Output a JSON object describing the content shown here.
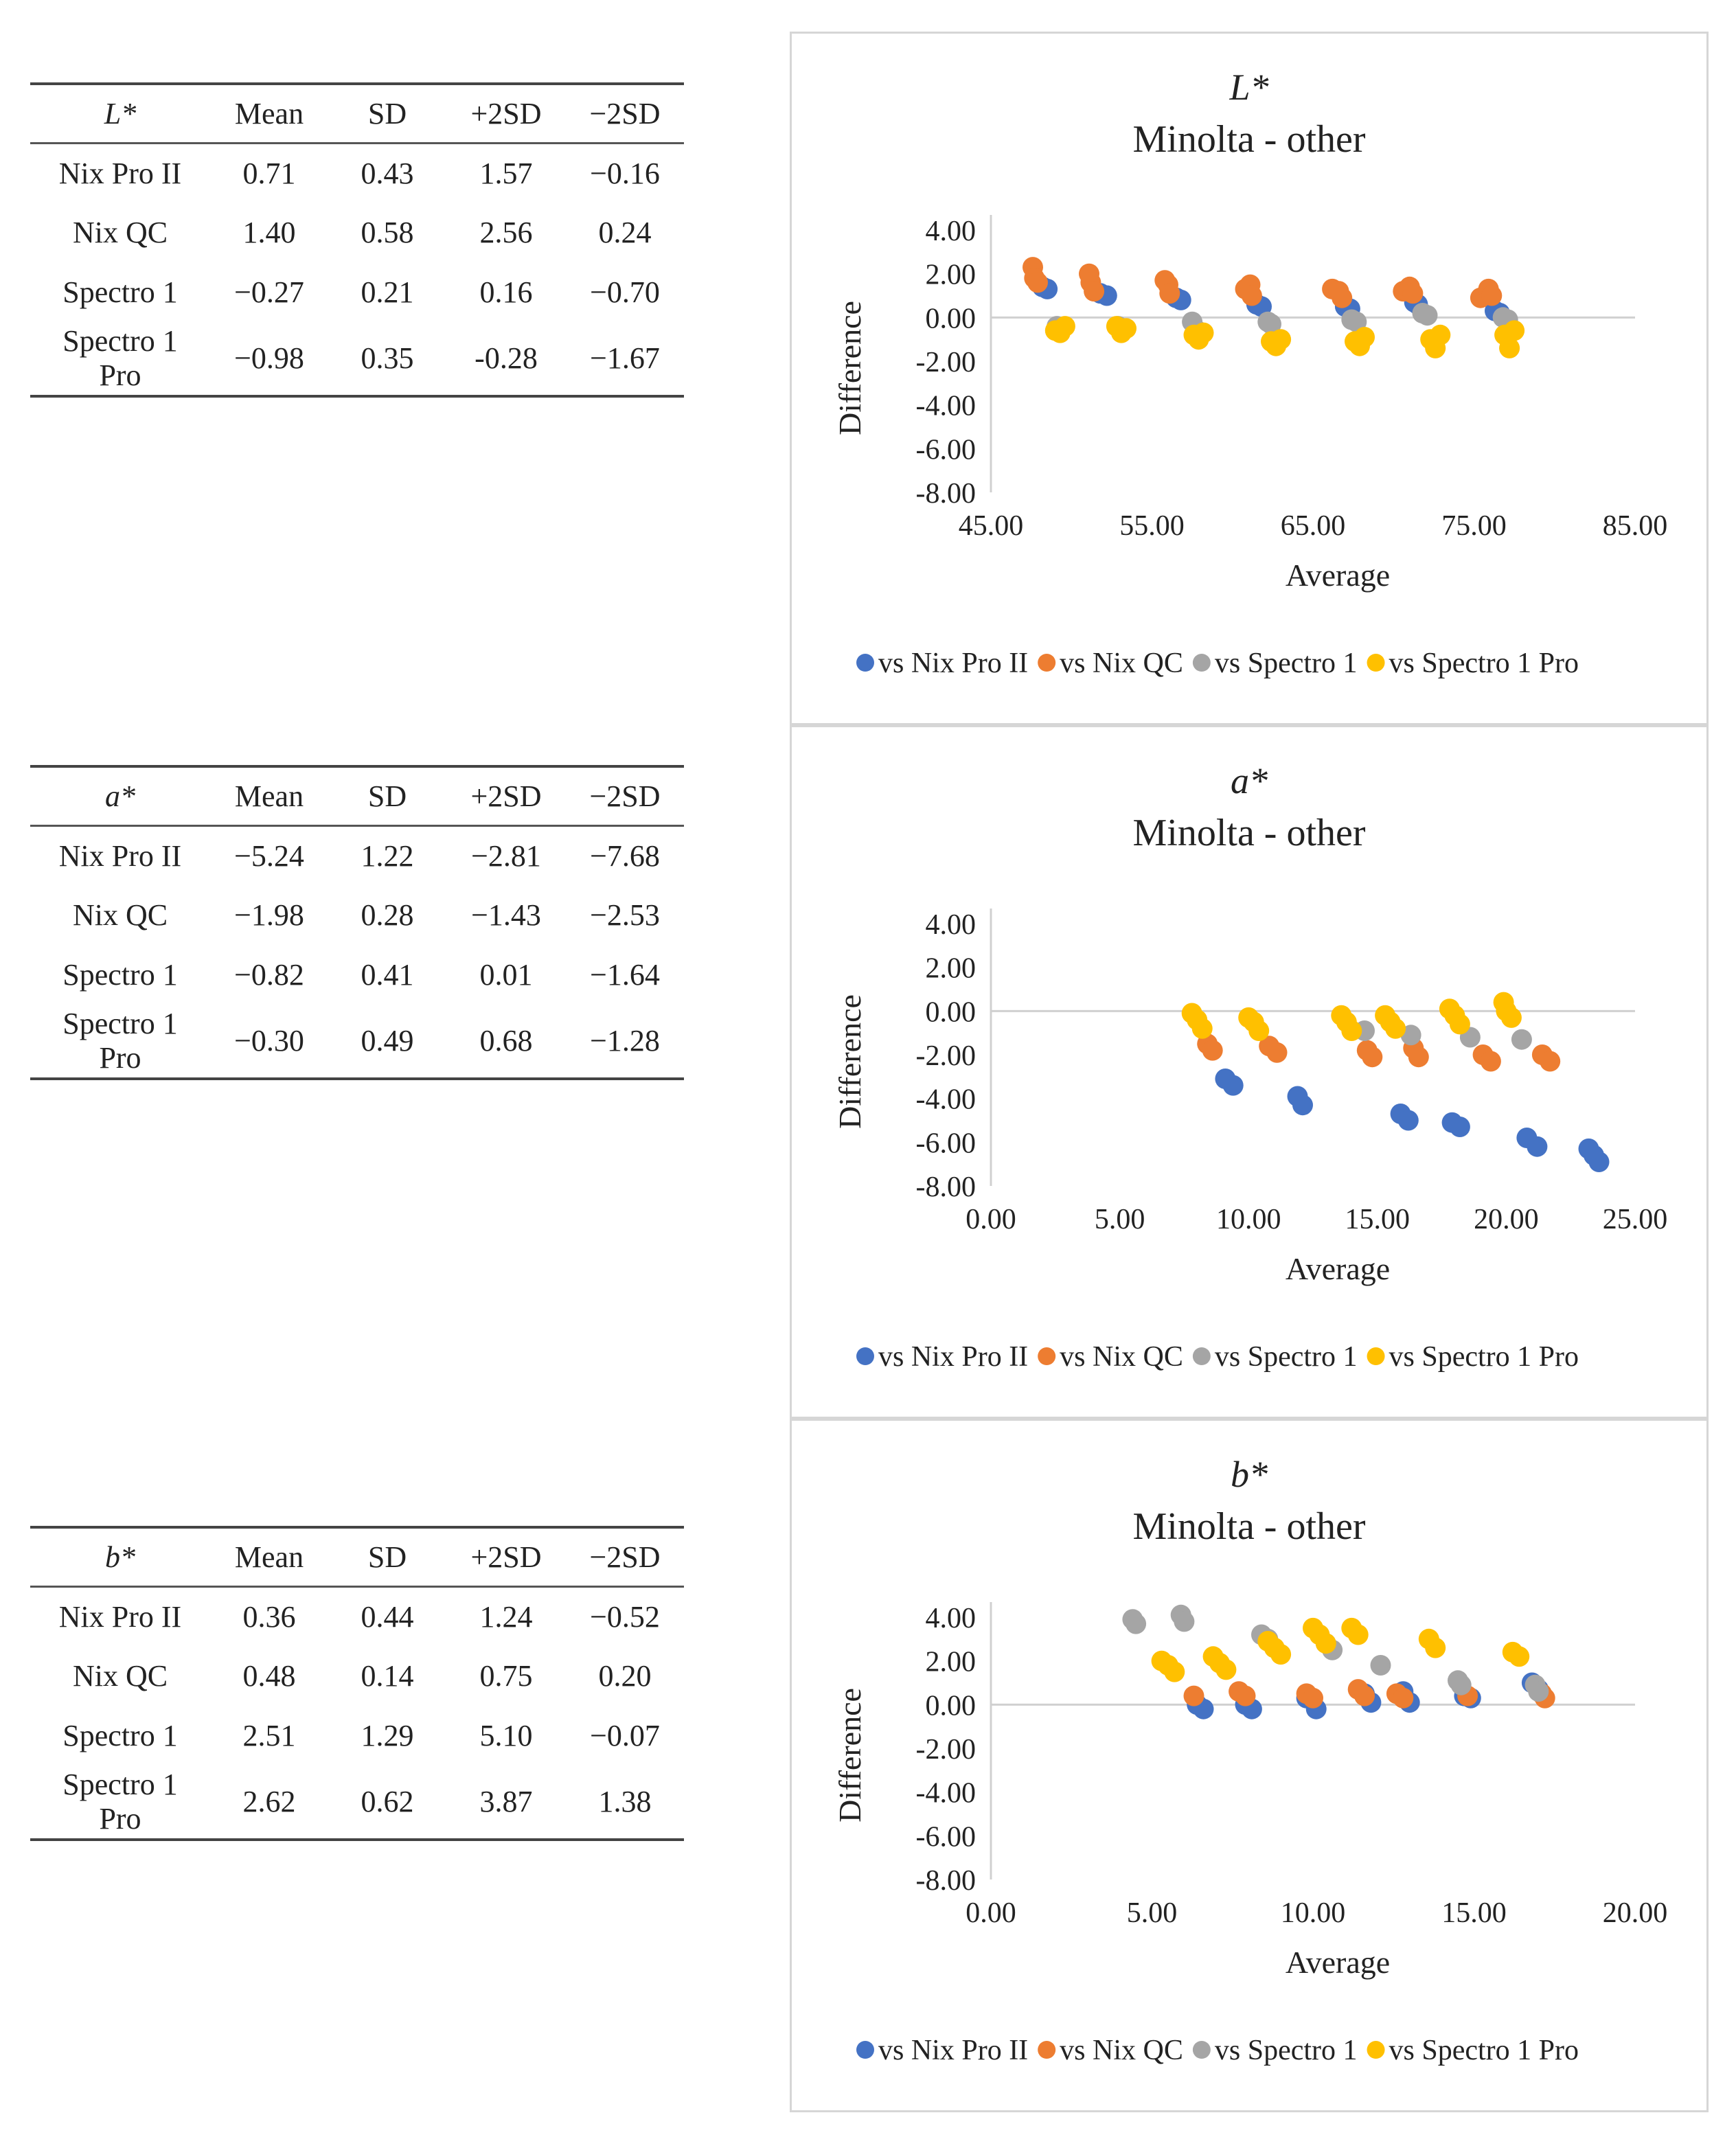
{
  "tables": [
    {
      "variable": "L*",
      "headers": [
        "Mean",
        "SD",
        "+2SD",
        "−2SD"
      ],
      "rows": [
        {
          "label": "Nix Pro II",
          "values": [
            "0.71",
            "0.43",
            "1.57",
            "−0.16"
          ]
        },
        {
          "label": "Nix QC",
          "values": [
            "1.40",
            "0.58",
            "2.56",
            "0.24"
          ]
        },
        {
          "label": "Spectro 1",
          "values": [
            "−0.27",
            "0.21",
            "0.16",
            "−0.70"
          ]
        },
        {
          "label": "Spectro 1 Pro",
          "values": [
            "−0.98",
            "0.35",
            "-0.28",
            "−1.67"
          ]
        }
      ]
    },
    {
      "variable": "a*",
      "headers": [
        "Mean",
        "SD",
        "+2SD",
        "−2SD"
      ],
      "rows": [
        {
          "label": "Nix Pro II",
          "values": [
            "−5.24",
            "1.22",
            "−2.81",
            "−7.68"
          ]
        },
        {
          "label": "Nix QC",
          "values": [
            "−1.98",
            "0.28",
            "−1.43",
            "−2.53"
          ]
        },
        {
          "label": "Spectro 1",
          "values": [
            "−0.82",
            "0.41",
            "0.01",
            "−1.64"
          ]
        },
        {
          "label": "Spectro 1 Pro",
          "values": [
            "−0.30",
            "0.49",
            "0.68",
            "−1.28"
          ]
        }
      ]
    },
    {
      "variable": "b*",
      "headers": [
        "Mean",
        "SD",
        "+2SD",
        "−2SD"
      ],
      "rows": [
        {
          "label": "Nix Pro II",
          "values": [
            "0.36",
            "0.44",
            "1.24",
            "−0.52"
          ]
        },
        {
          "label": "Nix QC",
          "values": [
            "0.48",
            "0.14",
            "0.75",
            "0.20"
          ]
        },
        {
          "label": "Spectro 1",
          "values": [
            "2.51",
            "1.29",
            "5.10",
            "−0.07"
          ]
        },
        {
          "label": "Spectro 1 Pro",
          "values": [
            "2.62",
            "0.62",
            "3.87",
            "1.38"
          ]
        }
      ]
    }
  ],
  "colors": {
    "vs Nix Pro II": "#4472C4",
    "vs Nix QC": "#ED7D31",
    "vs Spectro 1": "#A5A5A5",
    "vs Spectro 1 Pro": "#FFC000",
    "axis": "#d0d0d0",
    "text": "#222222"
  },
  "chart_data": [
    {
      "type": "scatter",
      "title_var": "L*",
      "title": "Minolta - other",
      "xlabel": "Average",
      "ylabel": "Difference",
      "xlim": [
        45,
        85
      ],
      "ylim": [
        -8,
        4
      ],
      "xticks": [
        "45.00",
        "55.00",
        "65.00",
        "75.00",
        "85.00"
      ],
      "yticks": [
        "4.00",
        "2.00",
        "0.00",
        "-2.00",
        "-4.00",
        "-6.00",
        "-8.00"
      ],
      "legend_position": "bottom",
      "series": [
        {
          "name": "vs Nix Pro II",
          "points": [
            [
              48.2,
              1.4
            ],
            [
              48.5,
              1.3
            ],
            [
              51.8,
              1.1
            ],
            [
              52.2,
              1.0
            ],
            [
              56.5,
              0.9
            ],
            [
              56.8,
              0.8
            ],
            [
              61.5,
              0.6
            ],
            [
              61.8,
              0.5
            ],
            [
              67.0,
              0.5
            ],
            [
              67.3,
              0.4
            ],
            [
              71.3,
              0.7
            ],
            [
              71.5,
              0.6
            ],
            [
              76.3,
              0.3
            ],
            [
              76.6,
              0.2
            ]
          ]
        },
        {
          "name": "vs Nix QC",
          "points": [
            [
              47.6,
              2.3
            ],
            [
              47.7,
              1.8
            ],
            [
              47.9,
              1.6
            ],
            [
              51.1,
              2.0
            ],
            [
              51.2,
              1.6
            ],
            [
              51.4,
              1.2
            ],
            [
              55.8,
              1.7
            ],
            [
              56.0,
              1.5
            ],
            [
              56.1,
              1.1
            ],
            [
              60.8,
              1.3
            ],
            [
              61.1,
              1.5
            ],
            [
              61.2,
              1.0
            ],
            [
              66.2,
              1.3
            ],
            [
              66.6,
              1.2
            ],
            [
              66.8,
              0.9
            ],
            [
              70.6,
              1.2
            ],
            [
              71.0,
              1.4
            ],
            [
              71.2,
              1.1
            ],
            [
              75.4,
              0.9
            ],
            [
              75.9,
              1.3
            ],
            [
              76.1,
              1.0
            ]
          ]
        },
        {
          "name": "vs Spectro 1",
          "points": [
            [
              49.1,
              -0.4
            ],
            [
              49.4,
              -0.5
            ],
            [
              52.9,
              -0.4
            ],
            [
              57.5,
              -0.2
            ],
            [
              57.8,
              -0.6
            ],
            [
              62.2,
              -0.2
            ],
            [
              62.4,
              -0.3
            ],
            [
              67.4,
              -0.1
            ],
            [
              67.7,
              -0.2
            ],
            [
              71.8,
              0.2
            ],
            [
              72.1,
              0.1
            ],
            [
              76.8,
              0.0
            ],
            [
              77.1,
              -0.1
            ]
          ]
        },
        {
          "name": "vs Spectro 1 Pro",
          "points": [
            [
              49.0,
              -0.6
            ],
            [
              49.3,
              -0.7
            ],
            [
              49.6,
              -0.4
            ],
            [
              52.8,
              -0.4
            ],
            [
              53.1,
              -0.7
            ],
            [
              53.4,
              -0.5
            ],
            [
              57.6,
              -0.8
            ],
            [
              57.9,
              -1.0
            ],
            [
              58.2,
              -0.7
            ],
            [
              62.4,
              -1.1
            ],
            [
              62.7,
              -1.3
            ],
            [
              63.0,
              -1.0
            ],
            [
              67.6,
              -1.1
            ],
            [
              67.9,
              -1.3
            ],
            [
              68.2,
              -0.9
            ],
            [
              72.3,
              -1.0
            ],
            [
              72.6,
              -1.4
            ],
            [
              72.9,
              -0.8
            ],
            [
              76.9,
              -0.8
            ],
            [
              77.2,
              -1.4
            ],
            [
              77.5,
              -0.6
            ]
          ]
        }
      ]
    },
    {
      "type": "scatter",
      "title_var": "a*",
      "title": "Minolta - other",
      "xlabel": "Average",
      "ylabel": "Difference",
      "xlim": [
        0,
        25
      ],
      "ylim": [
        -8,
        4
      ],
      "xticks": [
        "0.00",
        "5.00",
        "10.00",
        "15.00",
        "20.00",
        "25.00"
      ],
      "yticks": [
        "4.00",
        "2.00",
        "0.00",
        "-2.00",
        "-4.00",
        "-6.00",
        "-8.00"
      ],
      "legend_position": "bottom",
      "series": [
        {
          "name": "vs Nix Pro II",
          "points": [
            [
              9.1,
              -3.1
            ],
            [
              9.4,
              -3.4
            ],
            [
              11.9,
              -3.9
            ],
            [
              12.1,
              -4.3
            ],
            [
              15.9,
              -4.7
            ],
            [
              16.2,
              -5.0
            ],
            [
              17.9,
              -5.1
            ],
            [
              18.2,
              -5.3
            ],
            [
              20.8,
              -5.8
            ],
            [
              21.2,
              -6.2
            ],
            [
              23.2,
              -6.3
            ],
            [
              23.4,
              -6.6
            ],
            [
              23.6,
              -6.9
            ]
          ]
        },
        {
          "name": "vs Nix QC",
          "points": [
            [
              8.4,
              -1.5
            ],
            [
              8.6,
              -1.8
            ],
            [
              10.8,
              -1.6
            ],
            [
              11.1,
              -1.9
            ],
            [
              14.6,
              -1.8
            ],
            [
              14.8,
              -2.1
            ],
            [
              16.4,
              -1.7
            ],
            [
              16.6,
              -2.1
            ],
            [
              19.1,
              -2.0
            ],
            [
              19.4,
              -2.3
            ],
            [
              21.4,
              -2.0
            ],
            [
              21.7,
              -2.3
            ]
          ]
        },
        {
          "name": "vs Spectro 1",
          "points": [
            [
              14.5,
              -0.9
            ],
            [
              16.3,
              -1.1
            ],
            [
              18.6,
              -1.2
            ],
            [
              20.6,
              -1.3
            ]
          ]
        },
        {
          "name": "vs Spectro 1 Pro",
          "points": [
            [
              7.8,
              -0.1
            ],
            [
              8.0,
              -0.4
            ],
            [
              8.2,
              -0.8
            ],
            [
              10.0,
              -0.3
            ],
            [
              10.2,
              -0.5
            ],
            [
              10.4,
              -0.9
            ],
            [
              13.6,
              -0.2
            ],
            [
              13.8,
              -0.5
            ],
            [
              14.0,
              -0.9
            ],
            [
              15.3,
              -0.2
            ],
            [
              15.5,
              -0.5
            ],
            [
              15.7,
              -0.8
            ],
            [
              17.8,
              0.1
            ],
            [
              18.0,
              -0.2
            ],
            [
              18.2,
              -0.6
            ],
            [
              19.9,
              0.4
            ],
            [
              20.0,
              0.0
            ],
            [
              20.2,
              -0.3
            ]
          ]
        }
      ]
    },
    {
      "type": "scatter",
      "title_var": "b*",
      "title": "Minolta - other",
      "xlabel": "Average",
      "ylabel": "Difference",
      "xlim": [
        0,
        20
      ],
      "ylim": [
        -8,
        4
      ],
      "xticks": [
        "0.00",
        "5.00",
        "10.00",
        "15.00",
        "20.00"
      ],
      "yticks": [
        "4.00",
        "2.00",
        "0.00",
        "-2.00",
        "-4.00",
        "-6.00",
        "-8.00"
      ],
      "legend_position": "bottom",
      "series": [
        {
          "name": "vs Nix Pro II",
          "points": [
            [
              6.4,
              0.0
            ],
            [
              6.6,
              -0.2
            ],
            [
              7.9,
              0.0
            ],
            [
              8.1,
              -0.2
            ],
            [
              9.8,
              0.3
            ],
            [
              10.1,
              -0.2
            ],
            [
              11.6,
              0.5
            ],
            [
              11.8,
              0.1
            ],
            [
              12.8,
              0.6
            ],
            [
              13.0,
              0.1
            ],
            [
              14.7,
              0.4
            ],
            [
              14.9,
              0.3
            ],
            [
              16.8,
              1.0
            ],
            [
              17.0,
              0.7
            ]
          ]
        },
        {
          "name": "vs Nix QC",
          "points": [
            [
              6.3,
              0.4
            ],
            [
              7.7,
              0.6
            ],
            [
              7.9,
              0.4
            ],
            [
              9.8,
              0.5
            ],
            [
              10.0,
              0.3
            ],
            [
              11.4,
              0.7
            ],
            [
              11.6,
              0.4
            ],
            [
              12.6,
              0.5
            ],
            [
              12.8,
              0.3
            ],
            [
              14.8,
              0.4
            ],
            [
              17.1,
              0.5
            ],
            [
              17.2,
              0.3
            ]
          ]
        },
        {
          "name": "vs Spectro 1",
          "points": [
            [
              4.4,
              3.9
            ],
            [
              4.5,
              3.7
            ],
            [
              5.9,
              4.1
            ],
            [
              6.0,
              3.8
            ],
            [
              8.4,
              3.2
            ],
            [
              8.6,
              3.0
            ],
            [
              10.4,
              2.8
            ],
            [
              10.6,
              2.5
            ],
            [
              12.1,
              1.8
            ],
            [
              14.5,
              1.1
            ],
            [
              14.6,
              0.9
            ],
            [
              16.9,
              0.9
            ],
            [
              17.0,
              0.6
            ]
          ]
        },
        {
          "name": "vs Spectro 1 Pro",
          "points": [
            [
              5.3,
              2.0
            ],
            [
              5.5,
              1.8
            ],
            [
              5.7,
              1.5
            ],
            [
              6.9,
              2.2
            ],
            [
              7.1,
              1.9
            ],
            [
              7.3,
              1.6
            ],
            [
              8.6,
              2.9
            ],
            [
              8.8,
              2.6
            ],
            [
              9.0,
              2.3
            ],
            [
              10.0,
              3.5
            ],
            [
              10.2,
              3.2
            ],
            [
              10.4,
              2.8
            ],
            [
              11.2,
              3.5
            ],
            [
              11.4,
              3.2
            ],
            [
              13.6,
              3.0
            ],
            [
              13.8,
              2.6
            ],
            [
              16.2,
              2.4
            ],
            [
              16.4,
              2.2
            ]
          ]
        }
      ]
    }
  ]
}
